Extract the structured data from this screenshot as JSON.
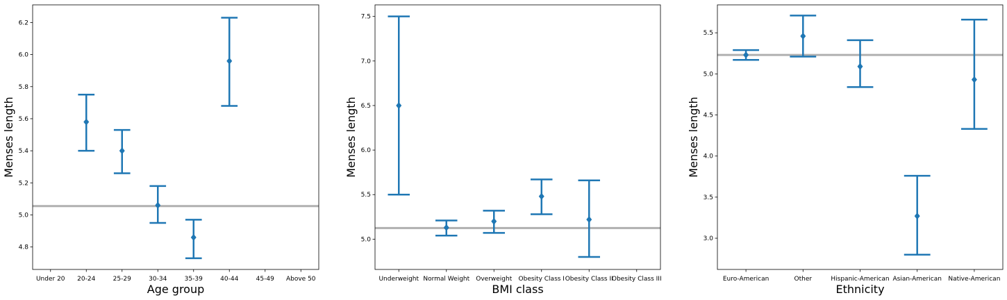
{
  "chart_data": [
    {
      "type": "errorbar",
      "xlabel": "Age group",
      "ylabel": "Menses length",
      "categories": [
        "Under 20",
        "20-24",
        "25-29",
        "30-34",
        "35-39",
        "40-44",
        "45-49",
        "Above 50"
      ],
      "series": [
        {
          "points": [
            {
              "category": "20-24",
              "y": 5.58,
              "low": 5.4,
              "high": 5.75
            },
            {
              "category": "25-29",
              "y": 5.4,
              "low": 5.26,
              "high": 5.53
            },
            {
              "category": "30-34",
              "y": 5.06,
              "low": 4.95,
              "high": 5.18
            },
            {
              "category": "35-39",
              "y": 4.86,
              "low": 4.73,
              "high": 4.97
            },
            {
              "category": "40-44",
              "y": 5.96,
              "low": 5.68,
              "high": 6.23
            }
          ]
        }
      ],
      "reference_line": 5.055,
      "ylim": [
        4.66,
        6.31
      ],
      "yticks": [
        4.8,
        5.0,
        5.2,
        5.4,
        5.6,
        5.8,
        6.0,
        6.2
      ],
      "ytick_labels": [
        "4.8",
        "5.0",
        "5.2",
        "5.4",
        "5.6",
        "5.8",
        "6.0",
        "6.2"
      ],
      "grid": false,
      "series_color": "#1f77b4",
      "reference_color": "#b0b0b0"
    },
    {
      "type": "errorbar",
      "xlabel": "BMI class",
      "ylabel": "Menses length",
      "categories": [
        "Underweight",
        "Normal Weight",
        "Overweight",
        "Obesity Class I",
        "Obesity Class II",
        "Obesity Class III"
      ],
      "series": [
        {
          "points": [
            {
              "category": "Underweight",
              "y": 6.5,
              "low": 5.5,
              "high": 7.5
            },
            {
              "category": "Normal Weight",
              "y": 5.13,
              "low": 5.04,
              "high": 5.21
            },
            {
              "category": "Overweight",
              "y": 5.2,
              "low": 5.07,
              "high": 5.32
            },
            {
              "category": "Obesity Class I",
              "y": 5.48,
              "low": 5.28,
              "high": 5.67
            },
            {
              "category": "Obesity Class II",
              "y": 5.22,
              "low": 4.8,
              "high": 5.66
            }
          ]
        }
      ],
      "reference_line": 5.125,
      "ylim": [
        4.66,
        7.63
      ],
      "yticks": [
        5.0,
        5.5,
        6.0,
        6.5,
        7.0,
        7.5
      ],
      "ytick_labels": [
        "5.0",
        "5.5",
        "6.0",
        "6.5",
        "7.0",
        "7.5"
      ],
      "grid": false,
      "series_color": "#1f77b4",
      "reference_color": "#b0b0b0"
    },
    {
      "type": "errorbar",
      "xlabel": "Ethnicity",
      "ylabel": "Menses length",
      "categories": [
        "Euro-American",
        "Other",
        "Hispanic-American",
        "Asian-American",
        "Native-American"
      ],
      "series": [
        {
          "points": [
            {
              "category": "Euro-American",
              "y": 5.23,
              "low": 5.17,
              "high": 5.29
            },
            {
              "category": "Other",
              "y": 5.46,
              "low": 5.21,
              "high": 5.71
            },
            {
              "category": "Hispanic-American",
              "y": 5.09,
              "low": 4.84,
              "high": 5.41
            },
            {
              "category": "Asian-American",
              "y": 3.27,
              "low": 2.8,
              "high": 3.76
            },
            {
              "category": "Native-American",
              "y": 4.93,
              "low": 4.33,
              "high": 5.66
            }
          ]
        }
      ],
      "reference_line": 5.23,
      "ylim": [
        2.62,
        5.84
      ],
      "yticks": [
        3.0,
        3.5,
        4.0,
        4.5,
        5.0,
        5.5
      ],
      "ytick_labels": [
        "3.0",
        "3.5",
        "4.0",
        "4.5",
        "5.0",
        "5.5"
      ],
      "grid": false,
      "series_color": "#1f77b4",
      "reference_color": "#b0b0b0"
    }
  ]
}
